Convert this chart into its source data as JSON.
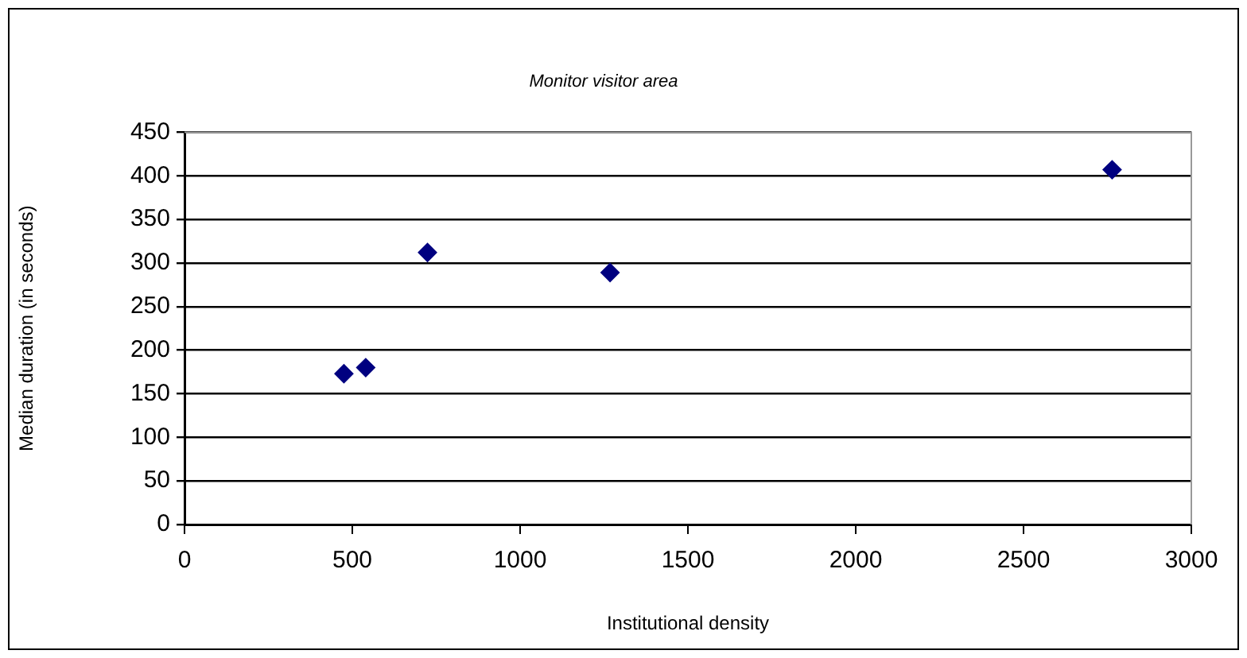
{
  "chart_data": {
    "type": "scatter",
    "title": "Monitor visitor area",
    "xlabel": "Institutional density",
    "ylabel": "Median duration (in seconds)",
    "x": [
      475,
      540,
      724,
      1268,
      2764
    ],
    "values": [
      173,
      180,
      312,
      289,
      407
    ],
    "color": "#000080",
    "marker": "diamond",
    "xlim": [
      0,
      3000
    ],
    "xticks": [
      0,
      500,
      1000,
      1500,
      2000,
      2500,
      3000
    ],
    "ylim": [
      0,
      450
    ],
    "yticks": [
      0,
      50,
      100,
      150,
      200,
      250,
      300,
      350,
      400,
      450
    ],
    "grid": "y",
    "legend": false
  }
}
